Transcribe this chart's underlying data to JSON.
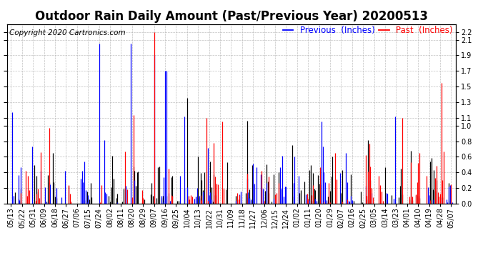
{
  "title": "Outdoor Rain Daily Amount (Past/Previous Year) 20200513",
  "copyright": "Copyright 2020 Cartronics.com",
  "legend_previous": "Previous  (Inches)",
  "legend_past": "Past  (Inches)",
  "ylim": [
    0.0,
    2.3
  ],
  "yticks": [
    0.0,
    0.2,
    0.4,
    0.6,
    0.8,
    1.0,
    1.1,
    1.3,
    1.5,
    1.7,
    1.9,
    2.1,
    2.2
  ],
  "background_color": "#ffffff",
  "plot_bg_color": "#ffffff",
  "grid_color": "#b0b0b0",
  "previous_color": "#0000ff",
  "past_color": "#ff0000",
  "black_color": "#000000",
  "title_fontsize": 12,
  "tick_fontsize": 7,
  "legend_fontsize": 8.5,
  "copyright_fontsize": 7.5,
  "start_date": "2019-05-13",
  "end_date": "2020-05-08"
}
